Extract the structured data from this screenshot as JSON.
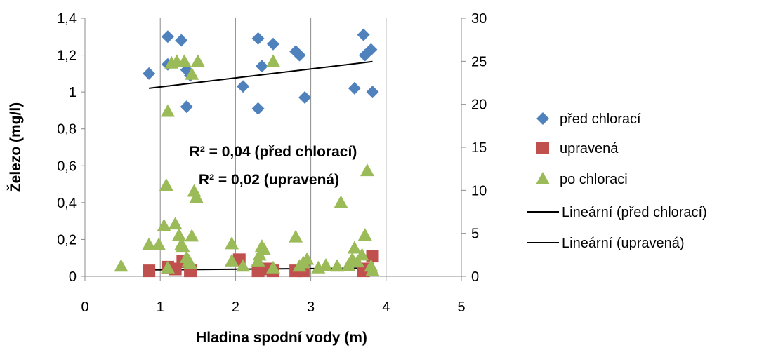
{
  "chart_data": {
    "type": "scatter",
    "title": "",
    "xlabel": "Hladina spodní vody (m)",
    "ylabel": "Železo (mg/l)",
    "xlim": [
      0,
      5
    ],
    "ylim": [
      0,
      1.4
    ],
    "y2lim": [
      0,
      30
    ],
    "xticks": [
      "0",
      "1",
      "2",
      "3",
      "4",
      "5"
    ],
    "yticks": [
      "0",
      "0,2",
      "0,4",
      "0,6",
      "0,8",
      "1",
      "1,2",
      "1,4"
    ],
    "y2ticks": [
      "0",
      "5",
      "10",
      "15",
      "20",
      "25",
      "30"
    ],
    "grid": "vertical",
    "legend_position": "right",
    "annotations": [
      "R² = 0,04 (před chlorací)",
      "R² = 0,02 (upravená)"
    ],
    "series": [
      {
        "name": "před chlorací",
        "marker": "diamond",
        "color": "#4F81BD",
        "axis": "left",
        "points": [
          [
            0.85,
            1.1
          ],
          [
            1.1,
            1.3
          ],
          [
            1.1,
            1.15
          ],
          [
            1.28,
            1.28
          ],
          [
            1.35,
            1.12
          ],
          [
            1.4,
            1.09
          ],
          [
            1.35,
            0.92
          ],
          [
            2.1,
            1.03
          ],
          [
            2.3,
            1.29
          ],
          [
            2.35,
            1.14
          ],
          [
            2.3,
            0.91
          ],
          [
            2.5,
            1.26
          ],
          [
            2.8,
            1.22
          ],
          [
            2.85,
            1.2
          ],
          [
            2.92,
            0.97
          ],
          [
            3.58,
            1.02
          ],
          [
            3.7,
            1.31
          ],
          [
            3.72,
            1.2
          ],
          [
            3.8,
            1.23
          ],
          [
            3.82,
            1.0
          ]
        ]
      },
      {
        "name": "upravená",
        "marker": "square",
        "color": "#C0504D",
        "axis": "left",
        "points": [
          [
            0.85,
            0.03
          ],
          [
            1.1,
            0.05
          ],
          [
            1.2,
            0.04
          ],
          [
            1.3,
            0.08
          ],
          [
            1.4,
            0.03
          ],
          [
            2.05,
            0.09
          ],
          [
            2.3,
            0.03
          ],
          [
            2.4,
            0.04
          ],
          [
            2.5,
            0.03
          ],
          [
            2.8,
            0.03
          ],
          [
            2.9,
            0.03
          ],
          [
            3.7,
            0.03
          ],
          [
            3.75,
            0.04
          ],
          [
            3.82,
            0.11
          ]
        ]
      },
      {
        "name": "po chloraci",
        "marker": "triangle",
        "color": "#9BBB59",
        "axis": "right",
        "points": [
          [
            0.48,
            1.2
          ],
          [
            0.85,
            3.7
          ],
          [
            0.98,
            3.7
          ],
          [
            1.05,
            5.9
          ],
          [
            1.1,
            1.0
          ],
          [
            1.08,
            10.6
          ],
          [
            1.1,
            19.2
          ],
          [
            1.15,
            24.8
          ],
          [
            1.2,
            6.1
          ],
          [
            1.22,
            25.0
          ],
          [
            1.25,
            4.8
          ],
          [
            1.28,
            3.7
          ],
          [
            1.3,
            3.5
          ],
          [
            1.32,
            25.0
          ],
          [
            1.35,
            2.2
          ],
          [
            1.38,
            1.8
          ],
          [
            1.4,
            1.5
          ],
          [
            1.42,
            4.7
          ],
          [
            1.42,
            23.5
          ],
          [
            1.45,
            9.9
          ],
          [
            1.48,
            9.2
          ],
          [
            1.5,
            25.0
          ],
          [
            1.95,
            3.8
          ],
          [
            1.95,
            1.8
          ],
          [
            2.1,
            1.2
          ],
          [
            2.3,
            1.8
          ],
          [
            2.32,
            2.5
          ],
          [
            2.35,
            3.5
          ],
          [
            2.38,
            3.1
          ],
          [
            2.5,
            25.0
          ],
          [
            2.5,
            1.0
          ],
          [
            2.8,
            4.6
          ],
          [
            2.85,
            1.2
          ],
          [
            2.9,
            1.6
          ],
          [
            2.95,
            2.0
          ],
          [
            3.1,
            1.0
          ],
          [
            3.2,
            1.3
          ],
          [
            3.35,
            1.2
          ],
          [
            3.4,
            8.6
          ],
          [
            3.5,
            1.3
          ],
          [
            3.55,
            2.0
          ],
          [
            3.58,
            3.3
          ],
          [
            3.62,
            1.7
          ],
          [
            3.68,
            2.5
          ],
          [
            3.72,
            4.8
          ],
          [
            3.75,
            12.3
          ],
          [
            3.8,
            1.2
          ],
          [
            3.82,
            0.7
          ]
        ]
      },
      {
        "name": "Lineární (před chlorací)",
        "type": "line",
        "color": "#000000",
        "axis": "left",
        "points": [
          [
            0.85,
            1.02
          ],
          [
            3.82,
            1.165
          ]
        ]
      },
      {
        "name": "Lineární (upravená)",
        "type": "line",
        "color": "#000000",
        "axis": "left",
        "points": [
          [
            0.85,
            0.035
          ],
          [
            3.82,
            0.045
          ]
        ]
      }
    ]
  }
}
